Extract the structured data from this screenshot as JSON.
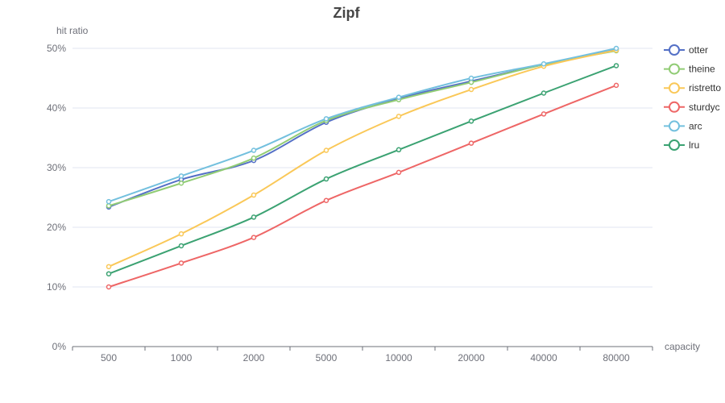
{
  "chart_data": {
    "type": "line",
    "title": "Zipf",
    "xlabel": "capacity",
    "ylabel": "hit ratio",
    "categories": [
      "500",
      "1000",
      "2000",
      "5000",
      "10000",
      "20000",
      "40000",
      "80000"
    ],
    "y_ticks": [
      "0%",
      "10%",
      "20%",
      "30%",
      "40%",
      "50%"
    ],
    "ylim": [
      0,
      50
    ],
    "y_unit": "%",
    "grid": true,
    "smooth": true,
    "legend_position": "right",
    "series": [
      {
        "name": "otter",
        "color": "#5470c6",
        "values": [
          23.4,
          28.0,
          31.2,
          37.6,
          41.6,
          44.5,
          47.3,
          49.8
        ]
      },
      {
        "name": "theine",
        "color": "#91cc75",
        "values": [
          23.6,
          27.4,
          31.6,
          37.9,
          41.4,
          44.3,
          47.3,
          49.6
        ]
      },
      {
        "name": "ristretto",
        "color": "#fac858",
        "values": [
          13.4,
          18.9,
          25.4,
          32.9,
          38.6,
          43.1,
          47.0,
          49.7
        ]
      },
      {
        "name": "sturdyc",
        "color": "#ee6666",
        "values": [
          10.0,
          14.0,
          18.3,
          24.5,
          29.2,
          34.1,
          39.0,
          43.8
        ]
      },
      {
        "name": "arc",
        "color": "#73c0de",
        "values": [
          24.3,
          28.6,
          32.9,
          38.2,
          41.8,
          45.0,
          47.4,
          50.0
        ]
      },
      {
        "name": "lru",
        "color": "#3ba272",
        "values": [
          12.2,
          16.9,
          21.7,
          28.1,
          33.0,
          37.8,
          42.5,
          47.1
        ]
      }
    ]
  }
}
